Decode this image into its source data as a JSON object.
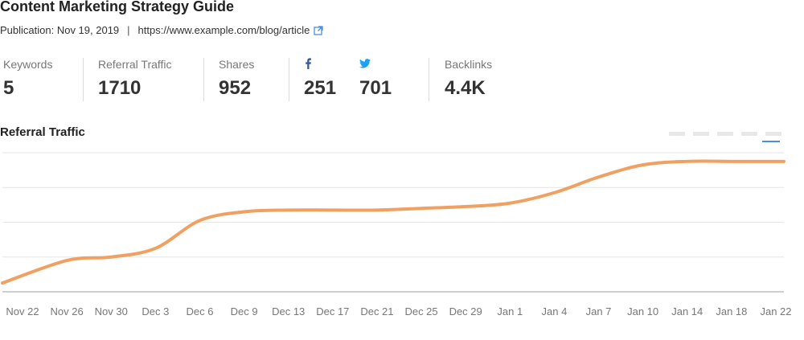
{
  "article": {
    "title": "Content Marketing Strategy Guide",
    "publication": "Publication: Nov 19, 2019",
    "separator": "|",
    "url": "https://www.example.com/blog/article",
    "external_icon": "external-link-icon"
  },
  "stats": {
    "keywords": {
      "label": "Keywords",
      "value": "5"
    },
    "referral": {
      "label": "Referral Traffic",
      "value": "1710"
    },
    "shares": {
      "label": "Shares",
      "value": "952"
    },
    "facebook": {
      "icon": "facebook-icon",
      "value": "251",
      "color": "#3b5998"
    },
    "twitter": {
      "icon": "twitter-icon",
      "value": "701",
      "color": "#1da1f2"
    },
    "backlinks": {
      "label": "Backlinks",
      "value": "4.4K"
    }
  },
  "chart_title": "Referral Traffic",
  "colors": {
    "line": "#f0a060",
    "legend_active": "#4a90d9",
    "grid": "#e6e6e6"
  },
  "chart_data": {
    "type": "line",
    "title": "Referral Traffic",
    "xlabel": "",
    "ylabel": "",
    "grid": true,
    "categories": [
      "Nov 22",
      "Nov 26",
      "Nov 30",
      "Dec 3",
      "Dec 6",
      "Dec 9",
      "Dec 13",
      "Dec 17",
      "Dec 21",
      "Dec 25",
      "Dec 29",
      "Jan 1",
      "Jan 4",
      "Jan 7",
      "Jan 10",
      "Jan 14",
      "Jan 18",
      "Jan 22"
    ],
    "ylim": [
      0,
      4
    ],
    "series": [
      {
        "values": [
          0.25,
          0.9,
          1.0,
          1.25,
          2.05,
          2.3,
          2.35,
          2.35,
          2.35,
          2.4,
          2.45,
          2.55,
          2.85,
          3.3,
          3.65,
          3.75,
          3.75,
          3.75
        ]
      }
    ]
  }
}
